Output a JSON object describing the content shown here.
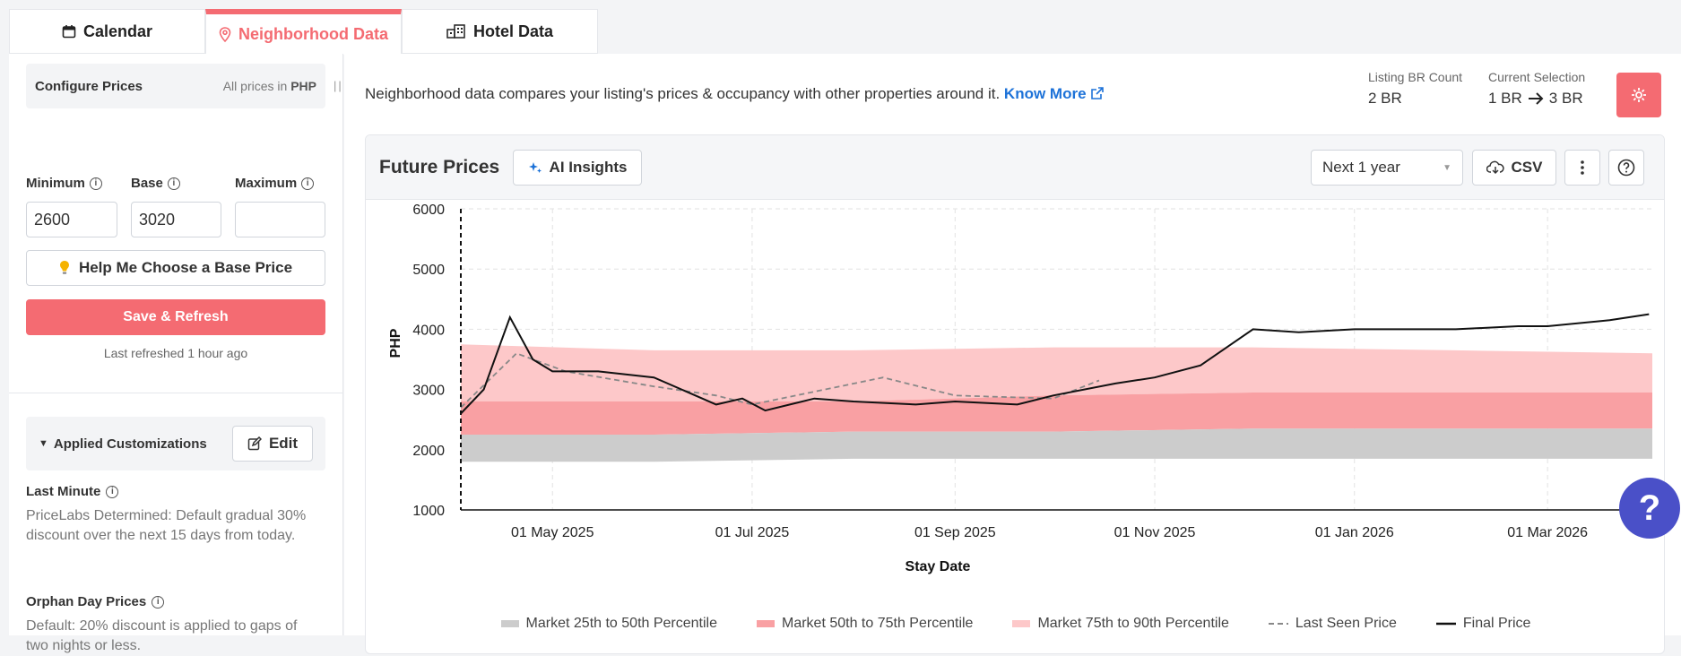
{
  "tabs": [
    {
      "label": "Calendar",
      "icon": "calendar-icon"
    },
    {
      "label": "Neighborhood Data",
      "icon": "map-pin-icon"
    },
    {
      "label": "Hotel Data",
      "icon": "building-icon"
    }
  ],
  "sidebar": {
    "configure_title": "Configure Prices",
    "prices_note_prefix": "All prices in",
    "currency": "PHP",
    "minimum_label": "Minimum",
    "base_label": "Base",
    "maximum_label": "Maximum",
    "minimum_value": "2600",
    "base_value": "3020",
    "maximum_value": "",
    "help_button": "Help Me Choose a Base Price",
    "save_button": "Save & Refresh",
    "last_refreshed": "Last refreshed 1 hour ago",
    "customizations_title": "Applied Customizations",
    "edit_button": "Edit",
    "rules": [
      {
        "title": "Last Minute",
        "text": "PriceLabs Determined: Default gradual 30% discount over the next 15 days from today."
      },
      {
        "title": "Orphan Day Prices",
        "text": "Default: 20% discount is applied to gaps of two nights or less."
      }
    ]
  },
  "main": {
    "description": "Neighborhood data compares your listing's prices & occupancy with other properties around it.",
    "know_more": "Know More",
    "listing_br_label": "Listing BR Count",
    "listing_br_value": "2 BR",
    "current_selection_label": "Current Selection",
    "current_selection_from": "1 BR",
    "current_selection_to": "3 BR"
  },
  "card": {
    "title": "Future Prices",
    "ai_button": "AI Insights",
    "range_value": "Next 1 year",
    "csv_button": "CSV"
  },
  "colors": {
    "accent": "#f46b72",
    "link": "#1d72d8",
    "p25_50": "#cccccc",
    "p50_75": "#f9a0a3",
    "p75_90": "#fdc8c9",
    "final": "#111111",
    "last_seen": "#888888"
  },
  "chart_data": {
    "type": "line",
    "xlabel": "Stay Date",
    "ylabel": "PHP",
    "ylim": [
      1000,
      6000
    ],
    "yticks": [
      1000,
      2000,
      3000,
      4000,
      5000,
      6000
    ],
    "xlim": [
      "2025-04-03",
      "2026-04-02"
    ],
    "xticks": [
      {
        "date": "2025-05-01",
        "label": "01 May 2025"
      },
      {
        "date": "2025-07-01",
        "label": "01 Jul 2025"
      },
      {
        "date": "2025-09-01",
        "label": "01 Sep 2025"
      },
      {
        "date": "2025-11-01",
        "label": "01 Nov 2025"
      },
      {
        "date": "2026-01-01",
        "label": "01 Jan 2026"
      },
      {
        "date": "2026-03-01",
        "label": "01 Mar 2026"
      }
    ],
    "grid": true,
    "legend": "bottom",
    "series": [
      {
        "name": "Market 25th to 50th Percentile",
        "kind": "band",
        "dates": [
          "2025-04-03",
          "2025-06-01",
          "2025-08-01",
          "2025-10-01",
          "2025-12-01",
          "2026-02-01",
          "2026-04-02"
        ],
        "low": [
          1800,
          1800,
          1850,
          1850,
          1850,
          1850,
          1850
        ],
        "high": [
          2250,
          2250,
          2300,
          2300,
          2350,
          2350,
          2350
        ]
      },
      {
        "name": "Market 50th to 75th Percentile",
        "kind": "band",
        "dates": [
          "2025-04-03",
          "2025-06-01",
          "2025-08-01",
          "2025-10-01",
          "2025-12-01",
          "2026-02-01",
          "2026-04-02"
        ],
        "low": [
          2250,
          2250,
          2300,
          2300,
          2350,
          2350,
          2350
        ],
        "high": [
          2800,
          2800,
          2800,
          2900,
          2950,
          2950,
          2950
        ]
      },
      {
        "name": "Market 75th to 90th Percentile",
        "kind": "band",
        "dates": [
          "2025-04-03",
          "2025-06-01",
          "2025-08-01",
          "2025-10-01",
          "2025-12-01",
          "2026-02-01",
          "2026-04-02"
        ],
        "low": [
          2800,
          2800,
          2800,
          2900,
          2950,
          2950,
          2950
        ],
        "high": [
          3750,
          3650,
          3650,
          3700,
          3700,
          3650,
          3600
        ]
      },
      {
        "name": "Last Seen Price",
        "kind": "dashed",
        "dates": [
          "2025-04-03",
          "2025-04-20",
          "2025-05-05",
          "2025-06-01",
          "2025-06-20",
          "2025-07-01",
          "2025-08-10",
          "2025-09-01",
          "2025-10-01",
          "2025-10-15"
        ],
        "values": [
          2700,
          3600,
          3300,
          3050,
          2900,
          2750,
          3200,
          2900,
          2850,
          3150
        ]
      },
      {
        "name": "Final Price",
        "kind": "line",
        "dates": [
          "2025-04-03",
          "2025-04-10",
          "2025-04-18",
          "2025-04-25",
          "2025-05-01",
          "2025-05-15",
          "2025-06-01",
          "2025-06-20",
          "2025-06-28",
          "2025-07-05",
          "2025-07-20",
          "2025-08-01",
          "2025-08-20",
          "2025-09-01",
          "2025-09-20",
          "2025-10-01",
          "2025-10-20",
          "2025-11-01",
          "2025-11-15",
          "2025-12-01",
          "2025-12-15",
          "2026-01-01",
          "2026-01-20",
          "2026-02-01",
          "2026-02-20",
          "2026-03-01",
          "2026-03-20",
          "2026-04-01"
        ],
        "values": [
          2600,
          3000,
          4200,
          3500,
          3300,
          3300,
          3200,
          2750,
          2850,
          2650,
          2850,
          2800,
          2750,
          2800,
          2750,
          2900,
          3100,
          3200,
          3400,
          4000,
          3950,
          4000,
          4000,
          4000,
          4050,
          4050,
          4150,
          4250
        ]
      }
    ]
  }
}
